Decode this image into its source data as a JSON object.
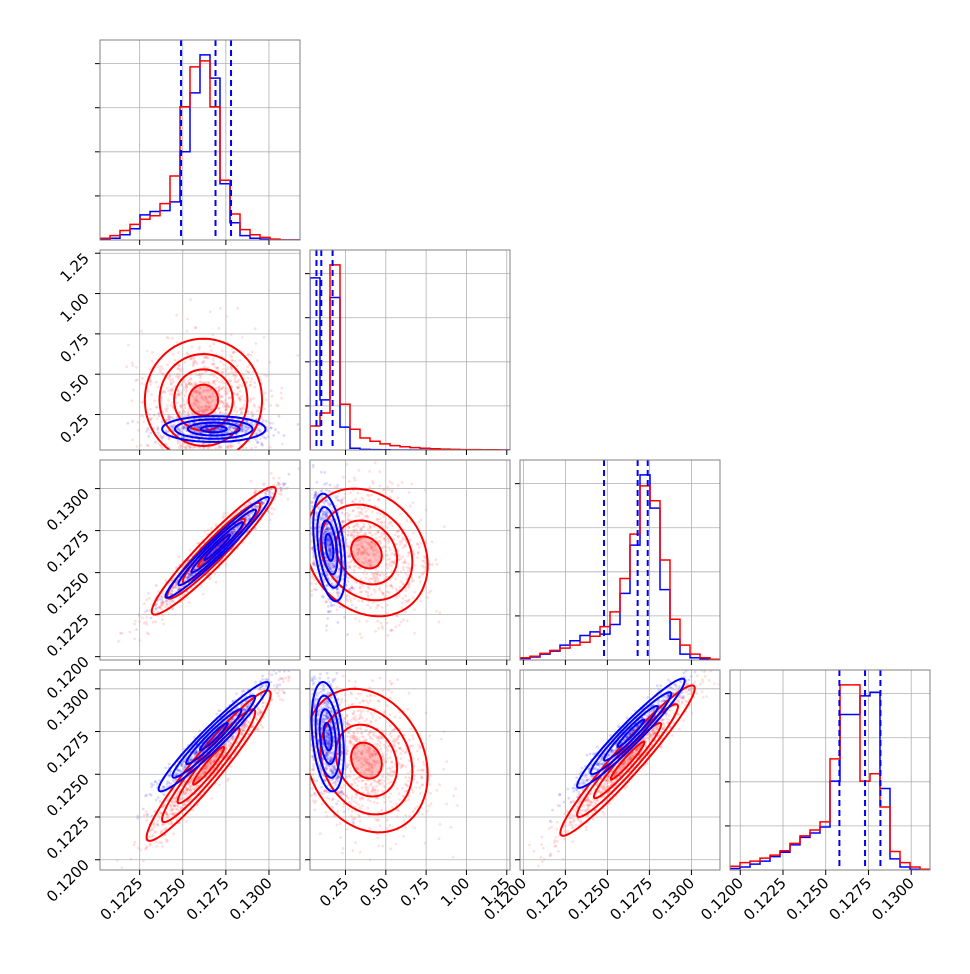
{
  "figure": {
    "colors": {
      "blue": "#0000ff",
      "red": "#ff0000",
      "grid": "#b0b0b0",
      "frame": "#808080"
    }
  },
  "chart_data": {
    "type": "corner",
    "parameters": 4,
    "series": [
      {
        "color": "#0000ff"
      },
      {
        "color": "#ff0000"
      }
    ],
    "axes": {
      "p0": {
        "range": [
          0.1202,
          0.1318
        ],
        "ticks": [
          0.1225,
          0.125,
          0.1275,
          0.13
        ],
        "tick_labels": [
          "0.1225",
          "0.1250",
          "0.1275",
          "0.1300"
        ]
      },
      "p1": {
        "range": [
          0.03,
          1.27
        ],
        "ticks": [
          0.25,
          0.5,
          0.75,
          1.0,
          1.25
        ],
        "tick_labels": [
          "0.25",
          "0.50",
          "0.75",
          "1.00",
          "1.25"
        ]
      },
      "p2": {
        "range": [
          0.1198,
          0.1317
        ],
        "ticks": [
          0.12,
          0.1225,
          0.125,
          0.1275,
          0.13
        ],
        "tick_labels": [
          "0.1200",
          "0.1225",
          "0.1250",
          "0.1275",
          "0.1300"
        ]
      },
      "p3": {
        "range": [
          0.1194,
          0.1311
        ],
        "ticks": [
          0.12,
          0.1225,
          0.125,
          0.1275,
          0.13
        ],
        "tick_labels": [
          "0.1200",
          "0.1225",
          "0.1250",
          "0.1275",
          "0.1300"
        ]
      }
    },
    "histograms": [
      {
        "param": "p0",
        "bins": [
          0.1202,
          0.1318,
          20
        ],
        "blue": [
          1,
          2,
          6,
          13,
          29,
          33,
          34,
          44,
          102,
          170,
          214,
          187,
          65,
          20,
          5,
          2,
          1,
          0,
          0,
          0
        ],
        "red": [
          2,
          5,
          11,
          18,
          24,
          28,
          42,
          74,
          154,
          200,
          207,
          154,
          69,
          30,
          12,
          6,
          3,
          1,
          0,
          0
        ],
        "quantiles": [
          0.1249,
          0.1269,
          0.1278
        ]
      },
      {
        "param": "p1",
        "bins": [
          0.03,
          1.27,
          20
        ],
        "blue": [
          790,
          230,
          700,
          105,
          8,
          3,
          2,
          1,
          0,
          0,
          0,
          0,
          0,
          0,
          0,
          0,
          0,
          0,
          0,
          0
        ],
        "red": [
          110,
          170,
          850,
          210,
          95,
          55,
          40,
          28,
          20,
          15,
          11,
          8,
          6,
          4,
          3,
          2,
          2,
          1,
          1,
          0
        ],
        "quantiles": [
          0.07,
          0.1,
          0.17
        ]
      },
      {
        "param": "p2",
        "bins": [
          0.1198,
          0.1317,
          20
        ],
        "blue": [
          2,
          4,
          8,
          12,
          20,
          26,
          33,
          38,
          35,
          48,
          90,
          155,
          250,
          205,
          95,
          28,
          8,
          3,
          1,
          0
        ],
        "red": [
          3,
          5,
          9,
          13,
          16,
          20,
          24,
          32,
          45,
          65,
          110,
          170,
          235,
          215,
          135,
          55,
          20,
          8,
          3,
          1
        ],
        "quantiles": [
          0.1248,
          0.1268,
          0.1274
        ]
      },
      {
        "param": "p3",
        "bins": [
          0.1194,
          0.1311,
          20
        ],
        "blue": [
          2,
          4,
          8,
          12,
          18,
          24,
          34,
          44,
          50,
          58,
          120,
          210,
          210,
          235,
          240,
          110,
          15,
          4,
          1,
          0
        ],
        "red": [
          5,
          10,
          12,
          16,
          20,
          26,
          36,
          46,
          54,
          65,
          150,
          250,
          250,
          120,
          130,
          85,
          25,
          10,
          4,
          1
        ],
        "quantiles": [
          0.1258,
          0.1273,
          0.1282
        ]
      }
    ],
    "scatter_panels": [
      {
        "x": "p0",
        "y": "p1",
        "blue": {
          "cx": 0.1268,
          "cy": 0.16,
          "sx": 0.0015,
          "sy": 0.04,
          "rho": 0.0
        },
        "red": {
          "cx": 0.1262,
          "cy": 0.34,
          "sx": 0.0017,
          "sy": 0.19,
          "rho": 0.0
        }
      },
      {
        "x": "p0",
        "y": "p2",
        "blue": {
          "cx": 0.127,
          "cy": 0.1265,
          "sx": 0.0015,
          "sy": 0.0015,
          "rho": 0.97
        },
        "red": {
          "cx": 0.1268,
          "cy": 0.1263,
          "sx": 0.0018,
          "sy": 0.0019,
          "rho": 0.95
        }
      },
      {
        "x": "p1",
        "y": "p2",
        "blue": {
          "cx": 0.15,
          "cy": 0.1265,
          "sx": 0.05,
          "sy": 0.0016,
          "rho": -0.4
        },
        "red": {
          "cx": 0.38,
          "cy": 0.1262,
          "sx": 0.19,
          "sy": 0.0019,
          "rho": -0.2
        }
      },
      {
        "x": "p0",
        "y": "p3",
        "blue": {
          "cx": 0.1268,
          "cy": 0.1272,
          "sx": 0.0016,
          "sy": 0.0016,
          "rho": 0.96
        },
        "red": {
          "cx": 0.1265,
          "cy": 0.1255,
          "sx": 0.0018,
          "sy": 0.0022,
          "rho": 0.95
        }
      },
      {
        "x": "p1",
        "y": "p3",
        "blue": {
          "cx": 0.14,
          "cy": 0.1272,
          "sx": 0.05,
          "sy": 0.0016,
          "rho": -0.3
        },
        "red": {
          "cx": 0.38,
          "cy": 0.1258,
          "sx": 0.19,
          "sy": 0.0021,
          "rho": -0.2
        }
      },
      {
        "x": "p2",
        "y": "p3",
        "blue": {
          "cx": 0.1264,
          "cy": 0.1274,
          "sx": 0.0016,
          "sy": 0.0016,
          "rho": 0.96
        },
        "red": {
          "cx": 0.1262,
          "cy": 0.1258,
          "sx": 0.002,
          "sy": 0.0022,
          "rho": 0.96
        }
      }
    ],
    "grid": true,
    "contour_levels": [
      0.5,
      1.0,
      1.5,
      2.0
    ]
  }
}
